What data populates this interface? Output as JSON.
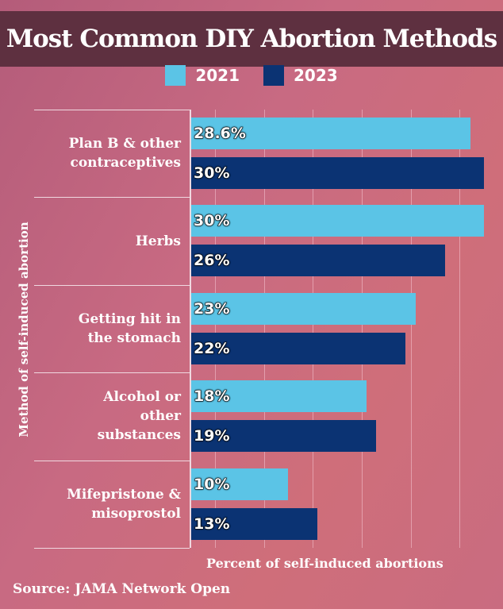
{
  "chart_data": {
    "type": "bar",
    "orientation": "horizontal",
    "title": "Most Common DIY Abortion Methods",
    "ylabel": "Method of self-induced abortion",
    "xlabel": "Percent of self-induced abortions",
    "source": "Source: JAMA Network Open",
    "xlim": [
      0,
      30
    ],
    "grid": true,
    "legend_placement": "top-center",
    "categories": [
      [
        "Plan B & other",
        "contraceptives"
      ],
      [
        "Herbs"
      ],
      [
        "Getting hit in",
        "the stomach"
      ],
      [
        "Alcohol or",
        "other",
        "substances"
      ],
      [
        "Mifepristone &",
        "misoprostol"
      ]
    ],
    "series": [
      {
        "name": "2021",
        "color": "#5bc4e6",
        "values": [
          28.6,
          30,
          23,
          18,
          10
        ],
        "labels": [
          "28.6%",
          "30%",
          "23%",
          "18%",
          "10%"
        ]
      },
      {
        "name": "2023",
        "color": "#0b3373",
        "values": [
          30,
          26,
          22,
          19,
          13
        ],
        "labels": [
          "30%",
          "26%",
          "22%",
          "19%",
          "13%"
        ]
      }
    ]
  }
}
